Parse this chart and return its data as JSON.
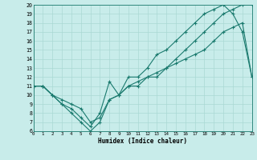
{
  "xlabel": "Humidex (Indice chaleur)",
  "bg_color": "#c8ecea",
  "grid_color": "#aad8d4",
  "line_color": "#1a7a6e",
  "xlim": [
    0,
    23
  ],
  "ylim": [
    6,
    20
  ],
  "xticks": [
    0,
    1,
    2,
    3,
    4,
    5,
    6,
    7,
    8,
    9,
    10,
    11,
    12,
    13,
    14,
    15,
    16,
    17,
    18,
    19,
    20,
    21,
    22,
    23
  ],
  "yticks": [
    6,
    7,
    8,
    9,
    10,
    11,
    12,
    13,
    14,
    15,
    16,
    17,
    18,
    19,
    20
  ],
  "line1_x": [
    0,
    1,
    2,
    3,
    4,
    5,
    6,
    7,
    8,
    9,
    10,
    11,
    12,
    13,
    14,
    15,
    16,
    17,
    18,
    19,
    20,
    21,
    22,
    23
  ],
  "line1_y": [
    11,
    11,
    10,
    9,
    8,
    7,
    6,
    7,
    9.5,
    10,
    11,
    11,
    12,
    12,
    13,
    14,
    15,
    16,
    17,
    18,
    19,
    19.5,
    20,
    20
  ],
  "line2_x": [
    0,
    1,
    2,
    3,
    4,
    5,
    6,
    7,
    8,
    9,
    10,
    11,
    12,
    13,
    14,
    15,
    16,
    17,
    18,
    19,
    20,
    21,
    22,
    23
  ],
  "line2_y": [
    11,
    11,
    10,
    9,
    8.5,
    7.5,
    6.5,
    8,
    11.5,
    10,
    12,
    12,
    13,
    14.5,
    15,
    16,
    17,
    18,
    19,
    19.5,
    20,
    19,
    17,
    12
  ],
  "line3_x": [
    0,
    1,
    2,
    3,
    4,
    5,
    6,
    7,
    8,
    9,
    10,
    11,
    12,
    13,
    14,
    15,
    16,
    17,
    18,
    19,
    20,
    21,
    22,
    23
  ],
  "line3_y": [
    11,
    11,
    10,
    9.5,
    9,
    8.5,
    7,
    7.5,
    9.5,
    10,
    11,
    11.5,
    12,
    12.5,
    13,
    13.5,
    14,
    14.5,
    15,
    16,
    17,
    17.5,
    18,
    12
  ]
}
